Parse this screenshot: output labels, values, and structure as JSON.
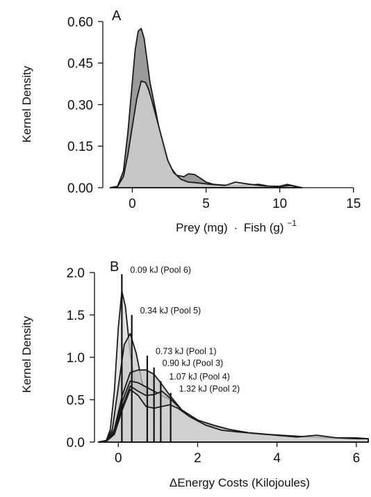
{
  "chart_data": [
    {
      "type": "area",
      "panel_label": "A",
      "xlabel_parts": {
        "prey": "Prey (mg)",
        "dot": "·",
        "fish": "Fish (g)",
        "exp": "−1"
      },
      "ylabel": "Kernel Density",
      "xlim": [
        -2,
        16
      ],
      "ylim": [
        0,
        0.62
      ],
      "xticks": [
        0,
        5,
        10,
        15
      ],
      "yticks": [
        0.0,
        0.15,
        0.3,
        0.45,
        0.6
      ],
      "ytick_labels": [
        "0.00",
        "0.15",
        "0.30",
        "0.45",
        "0.60"
      ],
      "grid": false,
      "series": [
        {
          "fill": "#8a8a8a",
          "x": [
            -1.5,
            -1,
            -0.6,
            -0.3,
            0,
            0.2,
            0.4,
            0.6,
            0.8,
            1.0,
            1.2,
            1.5,
            1.8,
            2.1,
            2.5,
            3.0,
            3.5,
            3.8,
            4.2,
            4.6,
            5.0,
            5.5,
            6.0,
            7.0,
            8.0,
            8.6,
            9.2,
            10.0,
            10.5,
            11.0,
            11.5
          ],
          "y": [
            0.0,
            0.005,
            0.06,
            0.2,
            0.38,
            0.5,
            0.565,
            0.575,
            0.54,
            0.46,
            0.38,
            0.3,
            0.22,
            0.14,
            0.08,
            0.045,
            0.04,
            0.05,
            0.048,
            0.035,
            0.02,
            0.012,
            0.01,
            0.006,
            0.01,
            0.012,
            0.006,
            0.005,
            0.012,
            0.006,
            0.0
          ]
        },
        {
          "fill": "#cfcfcf",
          "x": [
            -1.5,
            -1,
            -0.6,
            -0.3,
            0,
            0.3,
            0.6,
            0.9,
            1.1,
            1.3,
            1.6,
            2.0,
            2.4,
            2.8,
            3.3,
            3.8,
            4.3,
            4.8,
            5.3,
            5.8,
            6.3,
            7.0,
            8.0,
            9.0,
            10.0,
            10.7,
            11.5
          ],
          "y": [
            0.0,
            0.004,
            0.04,
            0.12,
            0.22,
            0.32,
            0.385,
            0.38,
            0.355,
            0.32,
            0.26,
            0.18,
            0.1,
            0.055,
            0.03,
            0.02,
            0.018,
            0.015,
            0.012,
            0.01,
            0.008,
            0.02,
            0.012,
            0.006,
            0.004,
            0.008,
            0.0
          ]
        }
      ]
    },
    {
      "type": "area",
      "panel_label": "B",
      "xlabel": "ΔEnergy Costs (Kilojoules)",
      "ylabel": "Kernel Density",
      "xlim": [
        -0.6,
        6.3
      ],
      "ylim": [
        0,
        2.05
      ],
      "xticks": [
        0,
        2,
        4,
        6
      ],
      "yticks": [
        0.0,
        0.5,
        1.0,
        1.5,
        2.0
      ],
      "ytick_labels": [
        "0.0",
        "0.5",
        "1.0",
        "1.5",
        "2.0"
      ],
      "grid": false,
      "annotations": [
        {
          "label": "0.09 kJ (Pool 6)",
          "x": 0.09,
          "y_top": 1.98
        },
        {
          "label": "0.34 kJ (Pool 5)",
          "x": 0.34,
          "y_top": 1.5
        },
        {
          "label": "0.73 kJ (Pool 1)",
          "x": 0.73,
          "y_top": 1.02
        },
        {
          "label": "0.90 kJ (Pool 3)",
          "x": 0.9,
          "y_top": 0.88
        },
        {
          "label": "1.07 kJ (Pool 4)",
          "x": 1.07,
          "y_top": 0.72
        },
        {
          "label": "1.32 kJ (Pool 2)",
          "x": 1.32,
          "y_top": 0.58
        }
      ],
      "series": [
        {
          "fill": "#d9d9d9",
          "x": [
            -0.5,
            -0.3,
            -0.2,
            -0.1,
            0.0,
            0.09,
            0.18,
            0.3,
            0.45,
            0.6,
            0.8,
            1.0,
            1.3,
            1.7,
            2.2,
            2.8,
            3.5,
            4.5,
            5.5,
            6.3
          ],
          "y": [
            0.0,
            0.02,
            0.15,
            0.6,
            1.35,
            1.78,
            1.6,
            1.05,
            0.6,
            0.4,
            0.3,
            0.25,
            0.2,
            0.14,
            0.09,
            0.06,
            0.04,
            0.02,
            0.015,
            0.01
          ]
        },
        {
          "fill": "#c9c9c9",
          "x": [
            -0.5,
            -0.3,
            -0.15,
            0.0,
            0.15,
            0.3,
            0.45,
            0.6,
            0.8,
            1.0,
            1.3,
            1.7,
            2.2,
            2.8,
            3.4,
            4.0,
            5.0,
            6.0,
            6.3
          ],
          "y": [
            0.0,
            0.02,
            0.15,
            0.65,
            1.15,
            1.28,
            1.05,
            0.7,
            0.45,
            0.32,
            0.24,
            0.17,
            0.12,
            0.09,
            0.07,
            0.05,
            0.03,
            0.02,
            0.02
          ]
        },
        {
          "fill": "#bdbdbd",
          "x": [
            -0.5,
            -0.3,
            -0.1,
            0.1,
            0.3,
            0.5,
            0.7,
            0.9,
            1.1,
            1.3,
            1.6,
            2.0,
            2.4,
            2.8,
            3.3,
            3.8,
            4.5,
            5.2,
            6.0,
            6.3
          ],
          "y": [
            0.0,
            0.01,
            0.15,
            0.55,
            0.82,
            0.85,
            0.85,
            0.8,
            0.68,
            0.55,
            0.38,
            0.25,
            0.18,
            0.14,
            0.1,
            0.08,
            0.06,
            0.04,
            0.03,
            0.03
          ]
        },
        {
          "fill": "#c3c3c3",
          "x": [
            -0.5,
            -0.3,
            -0.1,
            0.1,
            0.3,
            0.5,
            0.7,
            0.9,
            1.1,
            1.3,
            1.6,
            2.0,
            2.4,
            2.8,
            3.3,
            3.8,
            4.5,
            5.2,
            6.0,
            6.3
          ],
          "y": [
            0.0,
            0.01,
            0.12,
            0.48,
            0.72,
            0.7,
            0.65,
            0.6,
            0.55,
            0.5,
            0.38,
            0.26,
            0.19,
            0.15,
            0.1,
            0.08,
            0.06,
            0.05,
            0.04,
            0.03
          ]
        },
        {
          "fill": "#cbcbcb",
          "x": [
            -0.5,
            -0.3,
            -0.1,
            0.1,
            0.3,
            0.5,
            0.7,
            0.9,
            1.1,
            1.3,
            1.6,
            2.0,
            2.4,
            2.8,
            3.3,
            3.8,
            4.5,
            5.2,
            6.0,
            6.3
          ],
          "y": [
            0.0,
            0.01,
            0.1,
            0.42,
            0.66,
            0.6,
            0.55,
            0.56,
            0.6,
            0.52,
            0.38,
            0.26,
            0.2,
            0.15,
            0.11,
            0.09,
            0.07,
            0.05,
            0.05,
            0.04
          ]
        },
        {
          "fill": "#d3d3d3",
          "x": [
            -0.5,
            -0.3,
            -0.1,
            0.1,
            0.3,
            0.5,
            0.7,
            0.9,
            1.1,
            1.3,
            1.5,
            1.8,
            2.2,
            2.6,
            3.0,
            3.5,
            4.0,
            4.5,
            5.0,
            5.5,
            6.0,
            6.3
          ],
          "y": [
            0.0,
            0.01,
            0.09,
            0.38,
            0.62,
            0.55,
            0.42,
            0.4,
            0.42,
            0.44,
            0.4,
            0.3,
            0.2,
            0.14,
            0.12,
            0.1,
            0.08,
            0.06,
            0.08,
            0.05,
            0.04,
            0.04
          ]
        }
      ]
    }
  ]
}
